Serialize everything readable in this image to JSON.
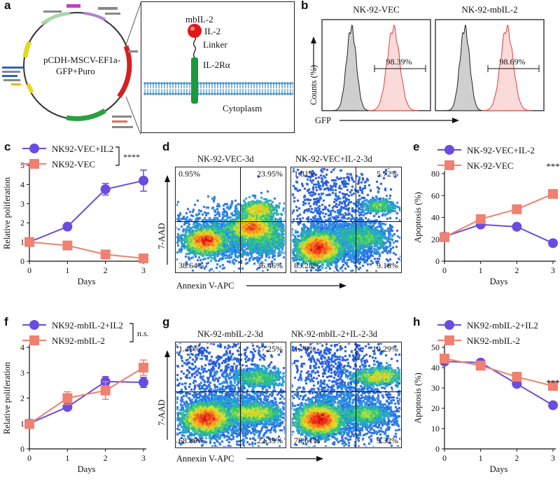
{
  "panels": {
    "a": "a",
    "b": "b",
    "c": "c",
    "d": "d",
    "e": "e",
    "f": "f",
    "g": "g",
    "h": "h"
  },
  "plasmid": {
    "name_line1": "pCDH-MSCV-EF1a-",
    "name_line2": "GFP+Puro"
  },
  "construct": {
    "title": "mbIL-2",
    "il2": "IL-2",
    "linker": "Linker",
    "receptor": "IL-2Rα",
    "cytoplasm": "Cytoplasm",
    "colors": {
      "il2": "#e01818",
      "receptor": "#1a9a3a",
      "membrane": "#3a8fd0"
    }
  },
  "chart_data": [
    {
      "id": "b",
      "type": "histogram",
      "ylabel": "Counts (%)",
      "xlabel": "GFP",
      "subplots": [
        {
          "title": "NK-92-VEC",
          "gate_label": "98.39%"
        },
        {
          "title": "NK-92-mbIL-2",
          "gate_label": "98.69%"
        }
      ]
    },
    {
      "id": "c",
      "type": "line",
      "xlabel": "Days",
      "ylabel": "Relative poliferation",
      "x": [
        0,
        1,
        2,
        3
      ],
      "xlim": [
        0,
        3
      ],
      "ylim": [
        0,
        5
      ],
      "xticks": [
        "0",
        "1",
        "2",
        "3"
      ],
      "yticks": [
        "0",
        "1",
        "2",
        "3",
        "4",
        "5"
      ],
      "significance": "****",
      "series": [
        {
          "name": "NK92-VEC+IL2",
          "color": "#6a4ce0",
          "marker": "circle",
          "values": [
            1.0,
            1.8,
            3.75,
            4.2
          ],
          "errors": [
            0.12,
            0.08,
            0.3,
            0.55
          ]
        },
        {
          "name": "NK92-VEC",
          "color": "#f08070",
          "marker": "square",
          "values": [
            1.0,
            0.82,
            0.35,
            0.15
          ],
          "errors": [
            0.1,
            0.08,
            0.08,
            0.06
          ]
        }
      ]
    },
    {
      "id": "d",
      "type": "flow",
      "xlabel": "Annexin V-APC",
      "ylabel": "7-AAD",
      "plots": [
        {
          "title": "NK-92-VEC-3d",
          "ul": "0.95%",
          "ur": "23.95%",
          "ll": "38.64%",
          "lr": "36.46%"
        },
        {
          "title": "NK-92-VEC+IL-2-3d",
          "ul": "1.81%",
          "ur": "5.72%",
          "ll": "83.28%",
          "lr": "9.18%"
        }
      ]
    },
    {
      "id": "e",
      "type": "line",
      "xlabel": "Days",
      "ylabel": "Apoptosis (%)",
      "x": [
        0,
        1,
        2,
        3
      ],
      "xlim": [
        0,
        3
      ],
      "ylim": [
        0,
        80
      ],
      "xticks": [
        "0",
        "1",
        "2",
        "3"
      ],
      "yticks": [
        "0",
        "20",
        "40",
        "60",
        "80"
      ],
      "significance": "***",
      "series": [
        {
          "name": "NK-92-VEC+IL-2",
          "color": "#6a4ce0",
          "marker": "circle",
          "values": [
            22.5,
            33.5,
            31.5,
            16.5
          ]
        },
        {
          "name": "NK-92-VEC",
          "color": "#f08070",
          "marker": "square",
          "values": [
            22,
            38.5,
            47.5,
            61.5
          ]
        }
      ]
    },
    {
      "id": "f",
      "type": "line",
      "xlabel": "Days",
      "ylabel": "Relative poliferation",
      "x": [
        0,
        1,
        2,
        3
      ],
      "xlim": [
        0,
        3
      ],
      "ylim": [
        0,
        4
      ],
      "xticks": [
        "0",
        "1",
        "2",
        "3"
      ],
      "yticks": [
        "0",
        "1",
        "2",
        "3",
        "4"
      ],
      "significance": "n.s.",
      "series": [
        {
          "name": "NK92-mbIL-2+IL2",
          "color": "#6a4ce0",
          "marker": "circle",
          "values": [
            1.0,
            1.65,
            2.65,
            2.62
          ],
          "errors": [
            0.12,
            0.1,
            0.2,
            0.2
          ]
        },
        {
          "name": "NK92-mbIL-2",
          "color": "#f08070",
          "marker": "square",
          "values": [
            0.98,
            2.0,
            2.3,
            3.2
          ],
          "errors": [
            0.12,
            0.25,
            0.35,
            0.3
          ]
        }
      ]
    },
    {
      "id": "g",
      "type": "flow",
      "xlabel": "Annexin V-APC",
      "ylabel": "7-AAD",
      "plots": [
        {
          "title": "NK-92-mbIL-2-3d",
          "ul": "1.47%",
          "ur": "7.25%",
          "ll": "68.89%",
          "lr": "22.39%"
        },
        {
          "title": "NK-92-mbIL-2+IL-2-3d",
          "ul": "1.78%",
          "ur": "10.29%",
          "ll": "78.61%",
          "lr": "9.32%"
        }
      ]
    },
    {
      "id": "h",
      "type": "line",
      "xlabel": "Days",
      "ylabel": "Apoptosis (%)",
      "x": [
        0,
        1,
        2,
        3
      ],
      "xlim": [
        0,
        3
      ],
      "ylim": [
        0,
        50
      ],
      "xticks": [
        "0",
        "1",
        "2",
        "3"
      ],
      "yticks": [
        "0",
        "10",
        "20",
        "30",
        "40",
        "50"
      ],
      "significance": "***",
      "series": [
        {
          "name": "NK92-mbIL-2+IL2",
          "color": "#6a4ce0",
          "marker": "circle",
          "values": [
            43,
            42.5,
            32,
            21.5
          ]
        },
        {
          "name": "NK92-mbIL-2",
          "color": "#f08070",
          "marker": "square",
          "values": [
            44.5,
            41,
            35.5,
            31
          ]
        }
      ]
    }
  ]
}
